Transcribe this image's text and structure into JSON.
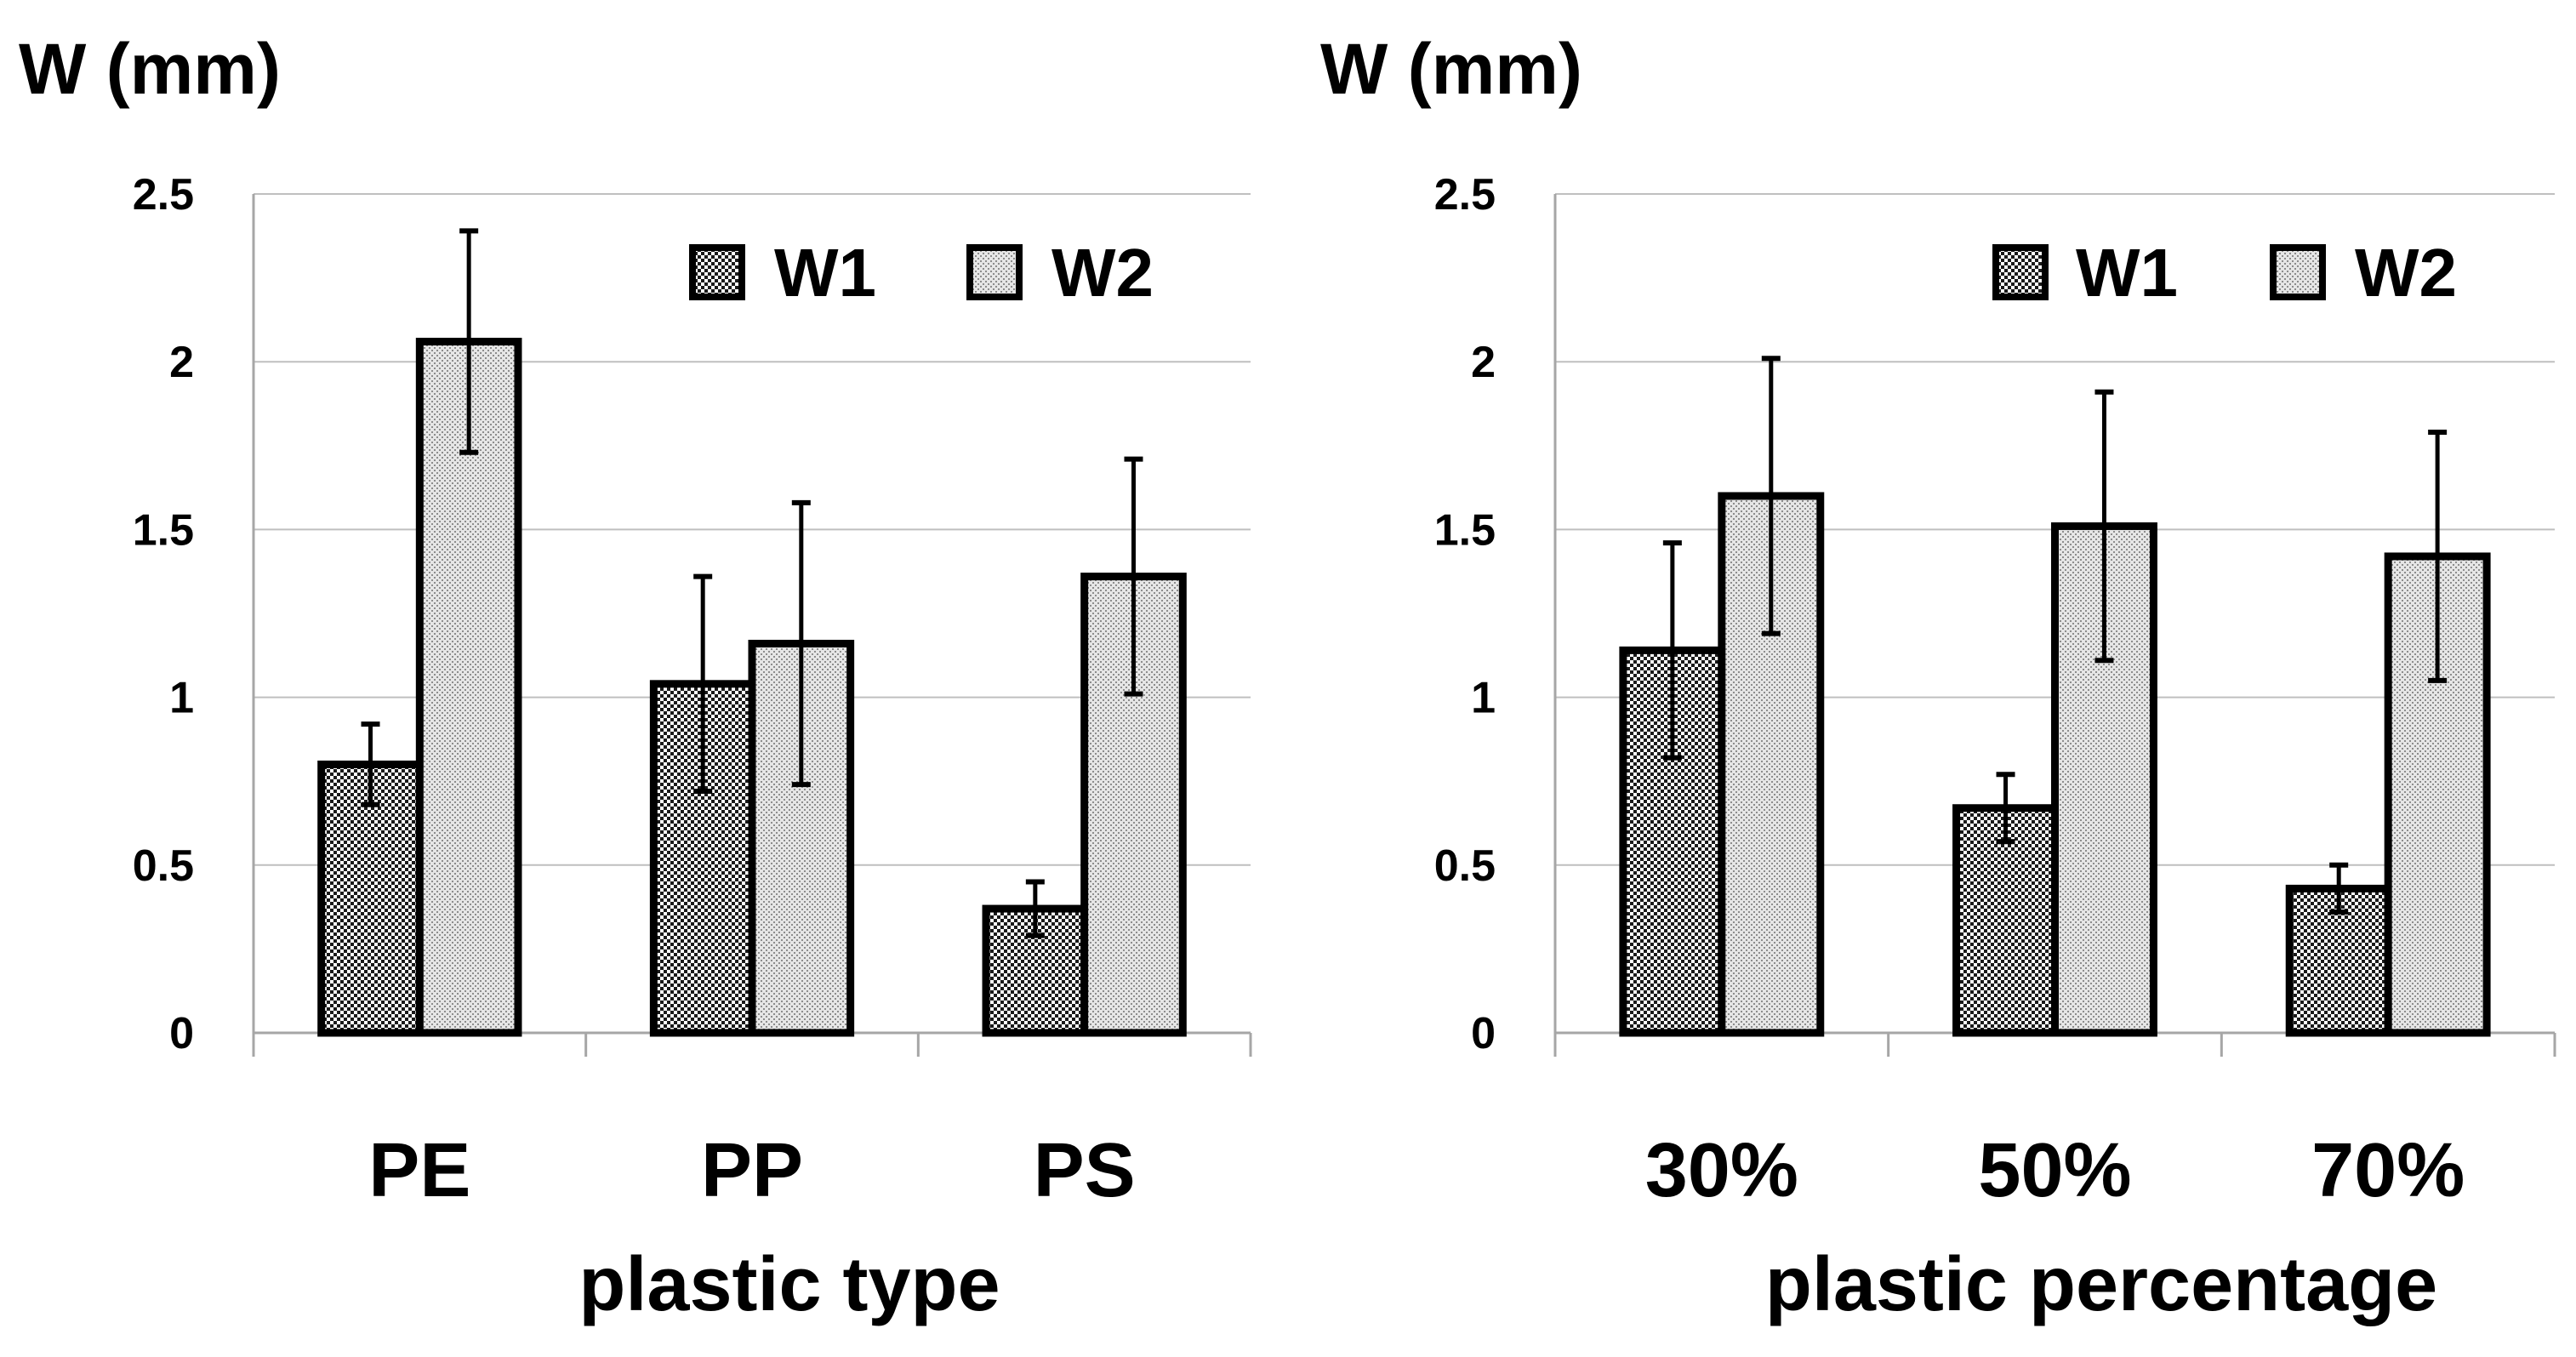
{
  "chart_data": [
    {
      "type": "bar",
      "ylabel": "W  (mm)",
      "xlabel": "plastic type",
      "categories": [
        "PE",
        "PP",
        "PS"
      ],
      "ylim": [
        0,
        2.5
      ],
      "yticks": [
        "0",
        "0.5",
        "1",
        "1.5",
        "2",
        "2.5"
      ],
      "grid": true,
      "legend_position": "top-right",
      "series": [
        {
          "name": "W1",
          "values": [
            0.8,
            1.04,
            0.37
          ],
          "errors": [
            0.12,
            0.32,
            0.08
          ],
          "pattern": "checker"
        },
        {
          "name": "W2",
          "values": [
            2.06,
            1.16,
            1.36
          ],
          "errors": [
            0.33,
            0.42,
            0.35
          ],
          "pattern": "dots"
        }
      ]
    },
    {
      "type": "bar",
      "ylabel": "W  (mm)",
      "xlabel": "plastic percentage",
      "categories": [
        "30%",
        "50%",
        "70%"
      ],
      "ylim": [
        0,
        2.5
      ],
      "yticks": [
        "0",
        "0.5",
        "1",
        "1.5",
        "2",
        "2.5"
      ],
      "grid": true,
      "legend_position": "top-right",
      "series": [
        {
          "name": "W1",
          "values": [
            1.14,
            0.67,
            0.43
          ],
          "errors": [
            0.32,
            0.1,
            0.07
          ],
          "pattern": "checker"
        },
        {
          "name": "W2",
          "values": [
            1.6,
            1.51,
            1.42
          ],
          "errors": [
            0.41,
            0.4,
            0.37
          ],
          "pattern": "dots"
        }
      ]
    }
  ],
  "colors": {
    "bar_outline": "#000000",
    "grid": "#bfbfbf",
    "background": "#ffffff"
  }
}
